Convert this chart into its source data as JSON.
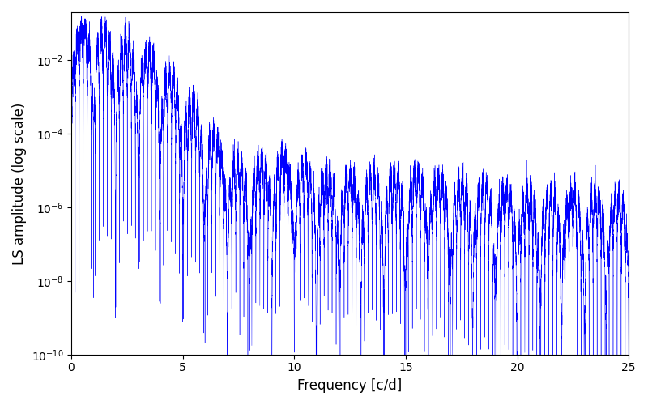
{
  "xlabel": "Frequency [c/d]",
  "ylabel": "LS amplitude (log scale)",
  "line_color": "#0000ff",
  "xlim": [
    0,
    25
  ],
  "ylim": [
    1e-10,
    0.2
  ],
  "background_color": "#ffffff",
  "figsize": [
    8.0,
    5.0
  ],
  "dpi": 100,
  "freq_max": 25.0,
  "n_points": 15000,
  "seed": 12
}
